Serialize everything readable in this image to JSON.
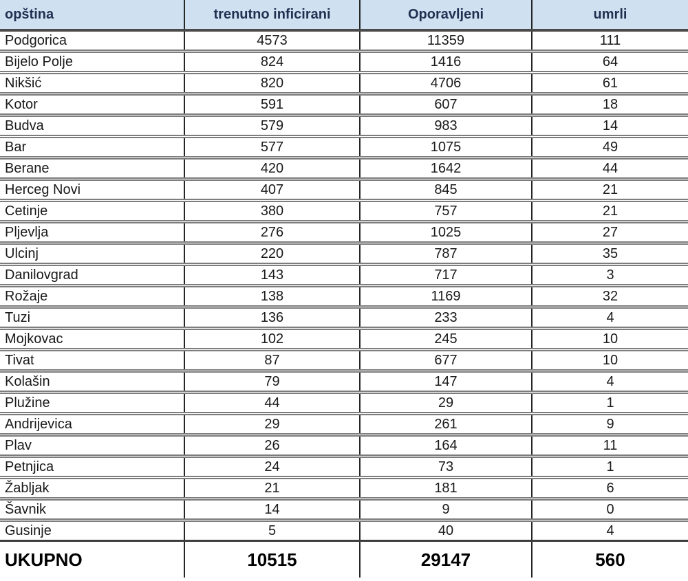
{
  "colors": {
    "header_bg": "#cfe0f1",
    "header_text": "#1f3050",
    "row_separator": "#7d7d7d",
    "column_separator": "#262626",
    "header_separator": "#4a4a4a",
    "body_text": "#1a1a1a"
  },
  "chart_data": {
    "type": "table",
    "columns": [
      "opština",
      "trenutno inficirani",
      "Oporavljeni",
      "umrli"
    ],
    "rows": [
      [
        "Podgorica",
        4573,
        11359,
        111
      ],
      [
        "Bijelo Polje",
        824,
        1416,
        64
      ],
      [
        "Nikšić",
        820,
        4706,
        61
      ],
      [
        "Kotor",
        591,
        607,
        18
      ],
      [
        "Budva",
        579,
        983,
        14
      ],
      [
        "Bar",
        577,
        1075,
        49
      ],
      [
        "Berane",
        420,
        1642,
        44
      ],
      [
        "Herceg Novi",
        407,
        845,
        21
      ],
      [
        "Cetinje",
        380,
        757,
        21
      ],
      [
        "Pljevlja",
        276,
        1025,
        27
      ],
      [
        "Ulcinj",
        220,
        787,
        35
      ],
      [
        "Danilovgrad",
        143,
        717,
        3
      ],
      [
        "Rožaje",
        138,
        1169,
        32
      ],
      [
        "Tuzi",
        136,
        233,
        4
      ],
      [
        "Mojkovac",
        102,
        245,
        10
      ],
      [
        "Tivat",
        87,
        677,
        10
      ],
      [
        "Kolašin",
        79,
        147,
        4
      ],
      [
        "Plužine",
        44,
        29,
        1
      ],
      [
        "Andrijevica",
        29,
        261,
        9
      ],
      [
        "Plav",
        26,
        164,
        11
      ],
      [
        "Petnjica",
        24,
        73,
        1
      ],
      [
        "Žabljak",
        21,
        181,
        6
      ],
      [
        "Šavnik",
        14,
        9,
        0
      ],
      [
        "Gusinje",
        5,
        40,
        4
      ]
    ],
    "total_row": [
      "UKUPNO",
      10515,
      29147,
      560
    ]
  }
}
